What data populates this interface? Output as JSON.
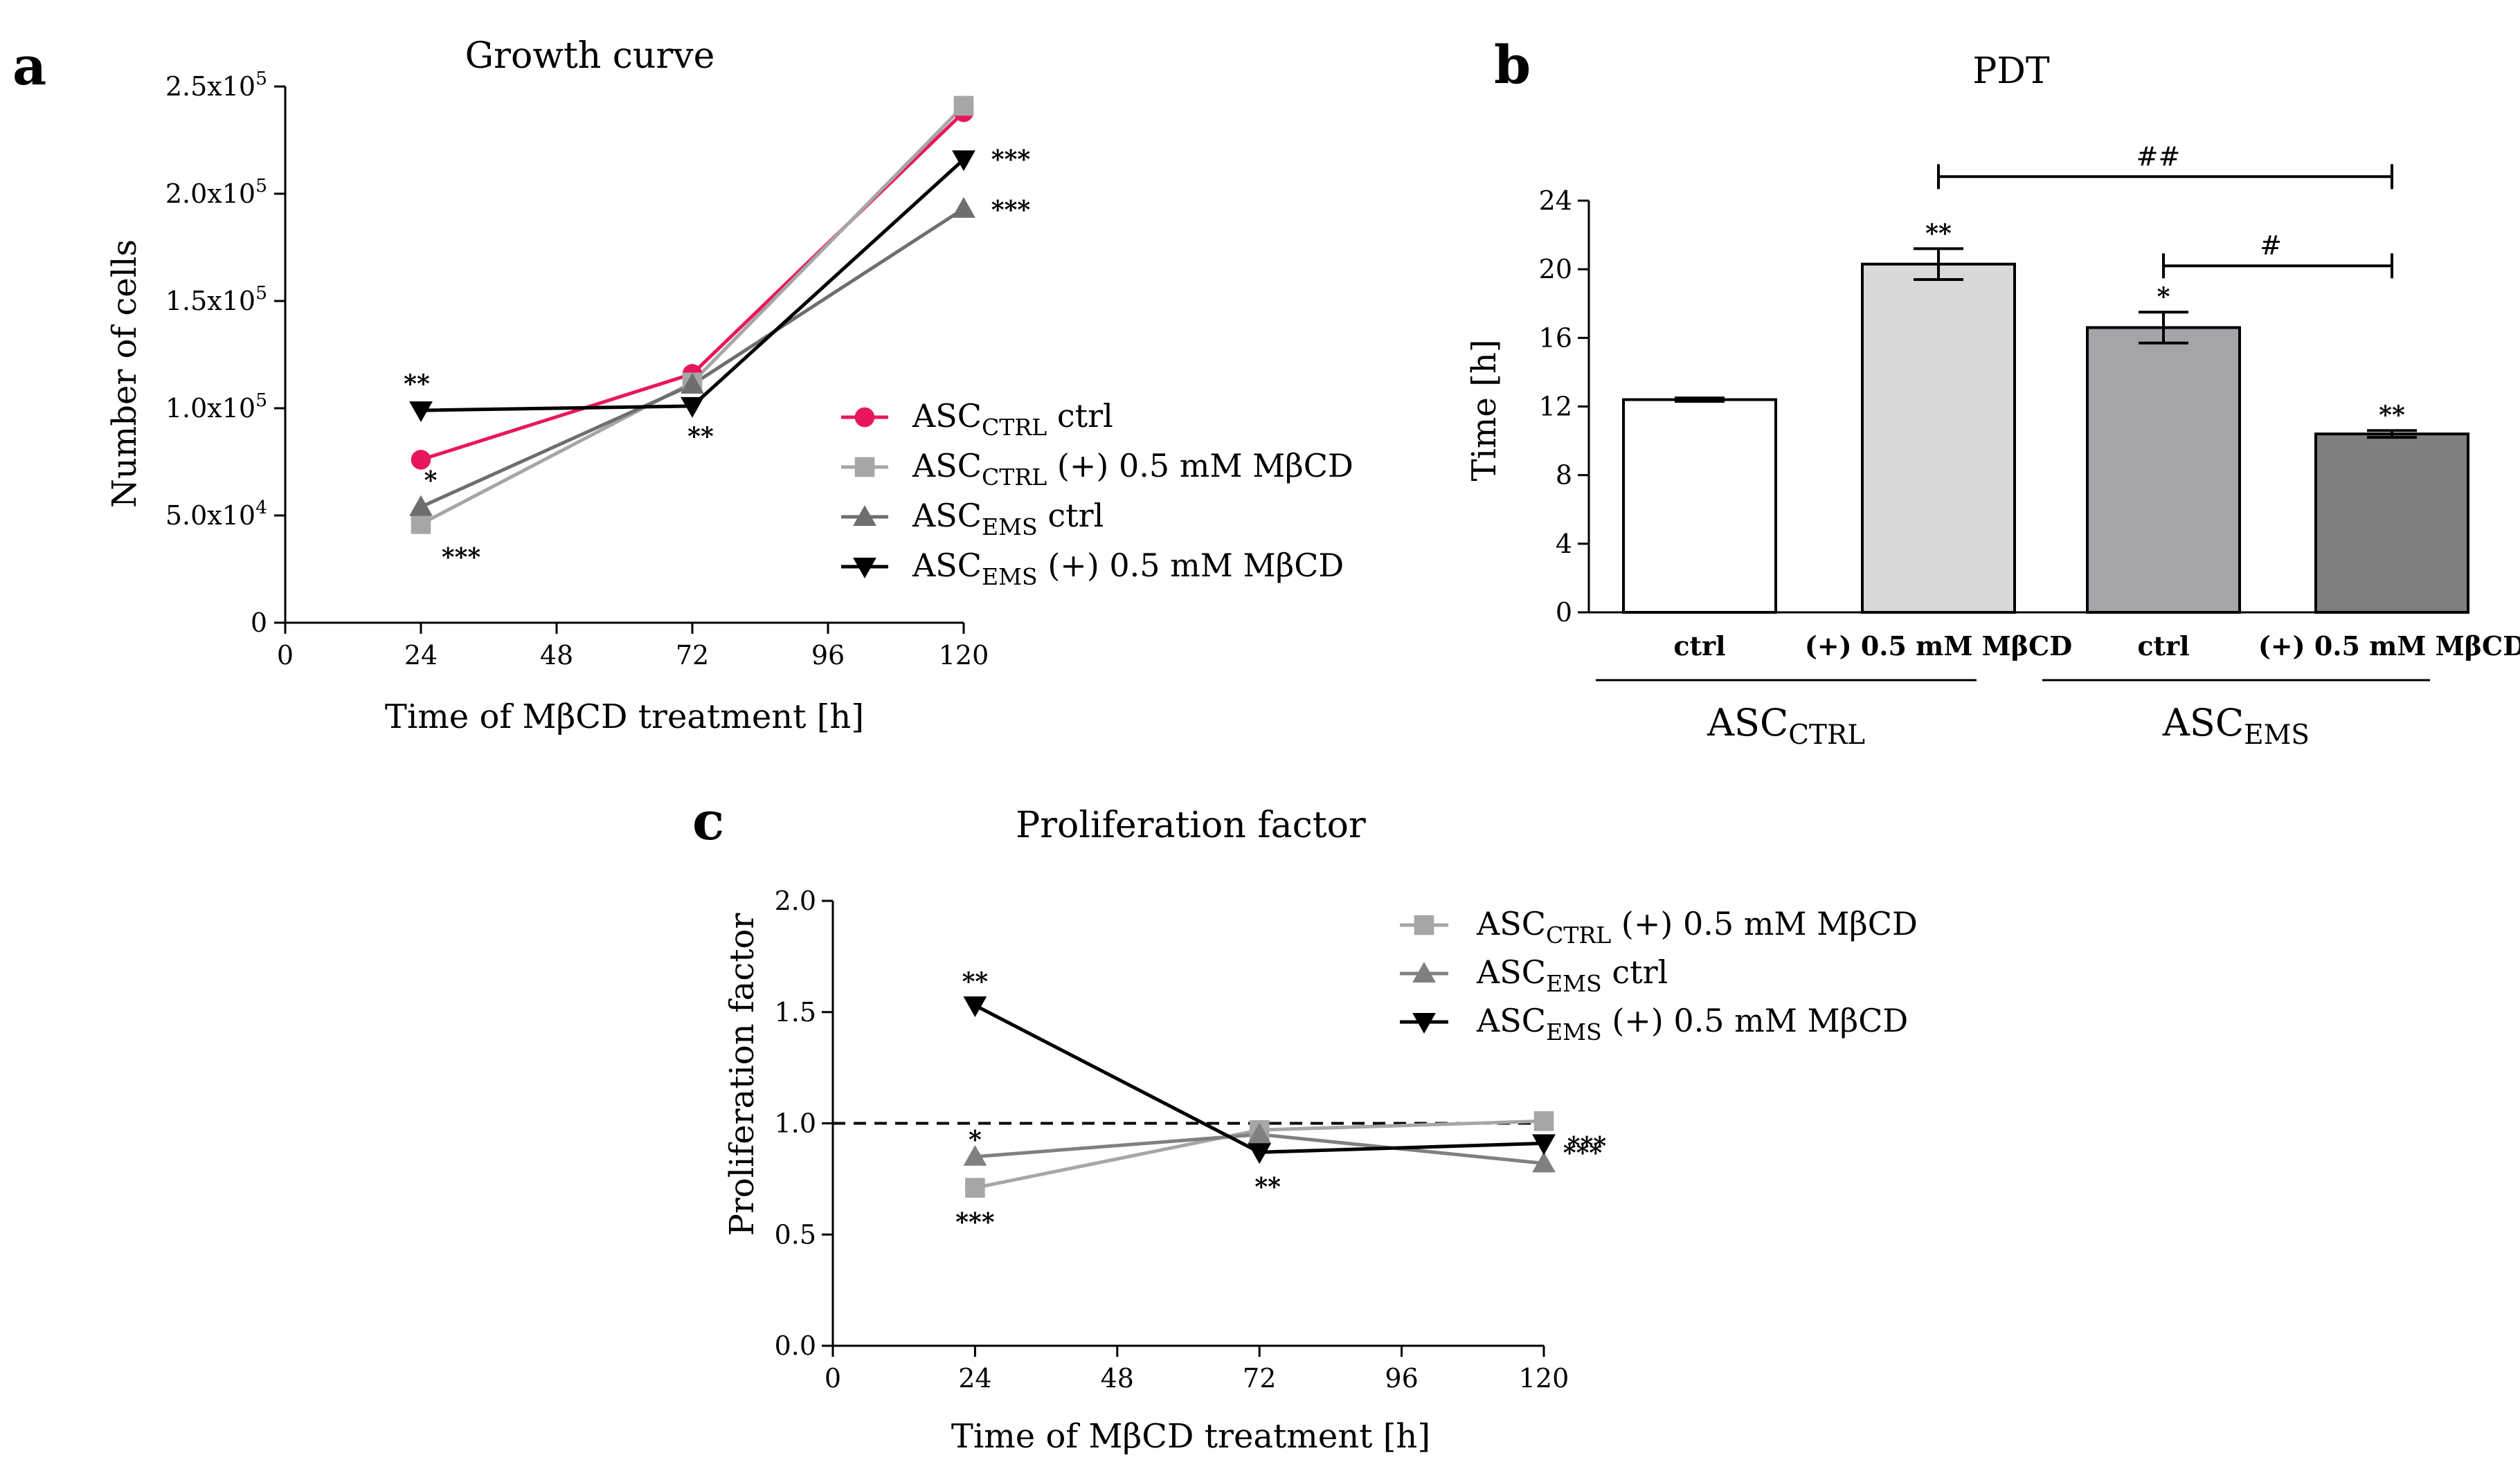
{
  "panel_a": {
    "letter": "a",
    "chart_data": {
      "type": "line",
      "title": "Growth curve",
      "xlabel": "Time of MβCD treatment [h]",
      "ylabel": "Number of cells",
      "x": [
        24,
        72,
        120
      ],
      "xticks": [
        0,
        24,
        48,
        72,
        96,
        120
      ],
      "xlim": [
        0,
        120
      ],
      "ylim": [
        0,
        250000
      ],
      "yticks": [
        0,
        50000,
        100000,
        150000,
        200000,
        250000
      ],
      "ytick_labels": [
        {
          "base": "0",
          "exp": ""
        },
        {
          "base": "5.0x10",
          "exp": "4"
        },
        {
          "base": "1.0x10",
          "exp": "5"
        },
        {
          "base": "1.5x10",
          "exp": "5"
        },
        {
          "base": "2.0x10",
          "exp": "5"
        },
        {
          "base": "2.5x10",
          "exp": "5"
        }
      ],
      "series": [
        {
          "name": "ASC",
          "sub": "CTRL",
          "suffix": " ctrl",
          "color": "#e8175d",
          "marker": "circle",
          "values": [
            76000,
            116000,
            238000
          ],
          "stars": [
            "",
            "",
            ""
          ]
        },
        {
          "name": "ASC",
          "sub": "CTRL",
          "suffix": " (+) 0.5 mM MβCD",
          "color": "#a6a6a6",
          "marker": "square",
          "values": [
            46000,
            112000,
            241000
          ],
          "stars": [
            "***",
            "",
            ""
          ]
        },
        {
          "name": "ASC",
          "sub": "EMS",
          "suffix": " ctrl",
          "color": "#6e6e6e",
          "marker": "triangle",
          "values": [
            54000,
            111000,
            193000
          ],
          "stars": [
            "*",
            "",
            "***"
          ]
        },
        {
          "name": "ASC",
          "sub": "EMS",
          "suffix": " (+) 0.5 mM MβCD",
          "color": "#000000",
          "marker": "triangle-down",
          "values": [
            99000,
            101000,
            216000
          ],
          "stars": [
            "**",
            "**",
            "***"
          ]
        }
      ]
    }
  },
  "panel_b": {
    "letter": "b",
    "chart_data": {
      "type": "bar",
      "title": "PDT",
      "ylabel": "Time [h]",
      "ylim": [
        0,
        24
      ],
      "yticks": [
        0,
        4,
        8,
        12,
        16,
        20,
        24
      ],
      "categories": [
        "ctrl",
        "(+) 0.5 mM MβCD",
        "ctrl",
        "(+) 0.5 mM MβCD"
      ],
      "values": [
        12.4,
        20.3,
        16.6,
        10.4
      ],
      "errors": [
        0.1,
        0.9,
        0.9,
        0.2
      ],
      "colors": [
        "#ffffff",
        "#d9d9d9",
        "#a5a5a9",
        "#7f7f7f"
      ],
      "stars": [
        "",
        "**",
        "*",
        "**"
      ],
      "groups": [
        {
          "name": "ASC",
          "sub": "CTRL"
        },
        {
          "name": "ASC",
          "sub": "EMS"
        }
      ],
      "brackets": [
        {
          "from": 1,
          "to": 3,
          "label": "##",
          "y": 25.4
        },
        {
          "from": 2,
          "to": 3,
          "label": "#",
          "y": 20.2
        }
      ]
    }
  },
  "panel_c": {
    "letter": "c",
    "chart_data": {
      "type": "line",
      "title": "Proliferation factor",
      "xlabel": "Time of MβCD treatment [h]",
      "ylabel": "Proliferation factor",
      "x": [
        24,
        72,
        120
      ],
      "xticks": [
        0,
        24,
        48,
        72,
        96,
        120
      ],
      "xlim": [
        0,
        120
      ],
      "ylim": [
        0,
        2.0
      ],
      "yticks": [
        "0.0",
        "0.5",
        "1.0",
        "1.5",
        "2.0"
      ],
      "reference_line": 1.0,
      "series": [
        {
          "name": "ASC",
          "sub": "CTRL",
          "suffix": " (+) 0.5 mM MβCD",
          "color": "#a6a6a6",
          "marker": "square",
          "values": [
            0.71,
            0.97,
            1.01
          ],
          "stars": [
            "***",
            "",
            "***"
          ]
        },
        {
          "name": "ASC",
          "sub": "EMS",
          "suffix": " ctrl",
          "color": "#808080",
          "marker": "triangle",
          "values": [
            0.85,
            0.95,
            0.82
          ],
          "stars": [
            "*",
            "",
            ""
          ]
        },
        {
          "name": "ASC",
          "sub": "EMS",
          "suffix": " (+) 0.5 mM MβCD",
          "color": "#000000",
          "marker": "triangle-down",
          "values": [
            1.53,
            0.87,
            0.91
          ],
          "stars": [
            "**",
            "**",
            "***"
          ]
        }
      ]
    }
  }
}
